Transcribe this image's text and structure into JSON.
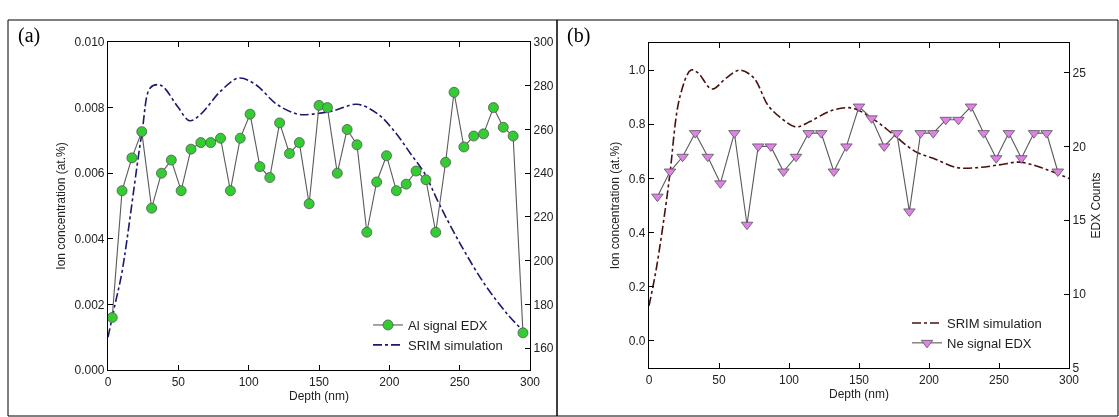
{
  "chart_data": [
    {
      "type": "line",
      "title": "(a)",
      "xlabel": "Depth (nm)",
      "ylabel": "Ion concentration (at.%)",
      "xlim": [
        0,
        300
      ],
      "xticks": [
        0,
        50,
        100,
        150,
        200,
        250,
        300
      ],
      "ylim": [
        0,
        0.01
      ],
      "yticks": [
        {
          "value": 0,
          "label": "0.000"
        },
        {
          "value": 0.002,
          "label": "0.002"
        },
        {
          "value": 0.004,
          "label": "0.004"
        },
        {
          "value": 0.006,
          "label": "0.006"
        },
        {
          "value": 0.008,
          "label": "0.008"
        },
        {
          "value": 0.01,
          "label": "0.010"
        }
      ],
      "y2lim": [
        150,
        300
      ],
      "y2ticks": [
        160,
        180,
        200,
        220,
        240,
        260,
        280,
        300
      ],
      "legend": "bottom right",
      "series": [
        {
          "name": "Al signal EDX",
          "axis": "y2",
          "color": "#33cc33",
          "marker": "circle",
          "line_style": "solid",
          "x": [
            3,
            10,
            17,
            24,
            31,
            38,
            45,
            52,
            59,
            66,
            73,
            80,
            87,
            94,
            101,
            108,
            115,
            122,
            129,
            136,
            143,
            150,
            156,
            163,
            170,
            177,
            184,
            191,
            198,
            205,
            212,
            219,
            226,
            233,
            240,
            246,
            253,
            260,
            267,
            274,
            281,
            288,
            295
          ],
          "values": [
            174,
            232,
            247,
            259,
            224,
            240,
            246,
            232,
            251,
            254,
            254,
            256,
            232,
            256,
            267,
            243,
            238,
            263,
            249,
            254,
            226,
            271,
            270,
            240,
            260,
            253,
            213,
            236,
            248,
            232,
            235,
            241,
            237,
            213,
            245,
            277,
            252,
            257,
            258,
            270,
            261,
            257,
            167
          ]
        },
        {
          "name": "SRIM simulation",
          "color": "#1a1a6e",
          "marker": "none",
          "line_style": "dashdot",
          "x": [
            0,
            5,
            10,
            24,
            30,
            36,
            40,
            50,
            58,
            66,
            80,
            93,
            105,
            120,
            135,
            145,
            160,
            177,
            192,
            205,
            215,
            225,
            235,
            251,
            268,
            284,
            295
          ],
          "values": [
            0.001,
            0.002,
            0.003,
            0.0072,
            0.0086,
            0.0087,
            0.0086,
            0.008,
            0.0076,
            0.0078,
            0.0085,
            0.0089,
            0.0087,
            0.0081,
            0.0078,
            0.0078,
            0.0079,
            0.0081,
            0.0078,
            0.0072,
            0.0066,
            0.006,
            0.0051,
            0.0038,
            0.0026,
            0.0017,
            0.0012
          ]
        }
      ]
    },
    {
      "type": "line",
      "title": "(b)",
      "xlabel": "Depth (nm)",
      "ylabel": "Ion concentration (at.%)",
      "y2label": "EDX Counts",
      "xlim": [
        0,
        300
      ],
      "xticks": [
        0,
        50,
        100,
        150,
        200,
        250,
        300
      ],
      "ylim": [
        -0.1,
        1.1
      ],
      "yticks": [
        {
          "value": 0,
          "label": "0.0"
        },
        0.2,
        0.4,
        0.6,
        0.8,
        {
          "value": 1,
          "label": "1.0"
        }
      ],
      "y2lim": [
        5,
        27
      ],
      "y2ticks": [
        5,
        10,
        15,
        20,
        25
      ],
      "legend": "bottom right",
      "series": [
        {
          "name": "SRIM simulation",
          "color": "#4a1010",
          "marker": "none",
          "line_style": "dashdot",
          "x": [
            0,
            5,
            12,
            15,
            22,
            30,
            35,
            45,
            55,
            65,
            75,
            85,
            95,
            105,
            115,
            130,
            145,
            160,
            175,
            190,
            205,
            220,
            235,
            250,
            265,
            280,
            300
          ],
          "values": [
            0.13,
            0.26,
            0.5,
            0.62,
            0.9,
            1.0,
            0.99,
            0.93,
            0.97,
            1.0,
            0.97,
            0.87,
            0.82,
            0.79,
            0.81,
            0.85,
            0.86,
            0.82,
            0.76,
            0.7,
            0.67,
            0.64,
            0.64,
            0.65,
            0.66,
            0.64,
            0.6
          ]
        },
        {
          "name": "Ne signal EDX",
          "axis": "y2",
          "color": "#e080e8",
          "marker": "triangle",
          "line_style": "solid",
          "x": [
            6,
            15,
            24,
            33,
            42,
            51,
            61,
            70,
            78,
            87,
            96,
            105,
            114,
            123,
            132,
            141,
            150,
            159,
            168,
            177,
            186,
            194,
            203,
            212,
            221,
            230,
            239,
            248,
            257,
            266,
            275,
            284,
            292
          ],
          "values": [
            16.6,
            18.3,
            19.3,
            20.9,
            19.3,
            17.5,
            20.9,
            14.7,
            20.0,
            20.0,
            18.3,
            19.3,
            20.9,
            20.9,
            18.3,
            20.0,
            22.7,
            21.9,
            20.0,
            20.9,
            15.6,
            20.9,
            20.9,
            21.8,
            21.8,
            22.7,
            20.9,
            19.2,
            20.9,
            19.2,
            20.9,
            20.9,
            18.3
          ]
        }
      ]
    }
  ]
}
